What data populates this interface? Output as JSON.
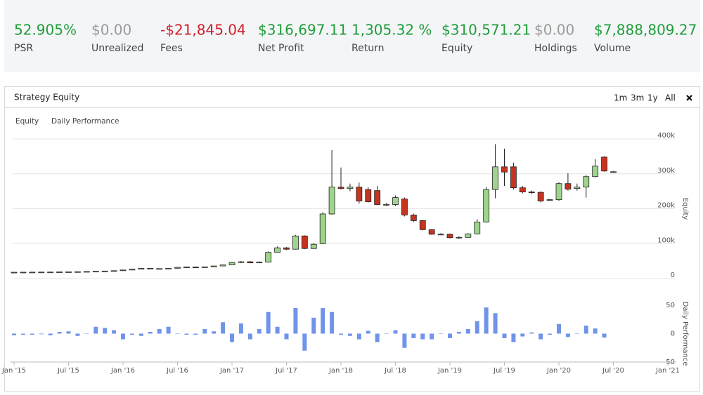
{
  "stats": [
    {
      "value": "52.905%",
      "label": "PSR",
      "color": "#1f9d3a"
    },
    {
      "value": "$0.00",
      "label": "Unrealized",
      "color": "#9a9a9a"
    },
    {
      "value": "-$21,845.04",
      "label": "Fees",
      "color": "#d0202a"
    },
    {
      "value": "$316,697.11",
      "label": "Net Profit",
      "color": "#1f9d3a"
    },
    {
      "value": "1,305.32 %",
      "label": "Return",
      "color": "#1f9d3a"
    },
    {
      "value": "$310,571.21",
      "label": "Equity",
      "color": "#1f9d3a"
    },
    {
      "value": "$0.00",
      "label": "Holdings",
      "color": "#9a9a9a"
    },
    {
      "value": "$7,888,809.27",
      "label": "Volume",
      "color": "#1f9d3a"
    }
  ],
  "panel": {
    "title": "Strategy Equity",
    "ranges": [
      "1m",
      "3m",
      "1y",
      "All"
    ],
    "tabs": [
      "Equity",
      "Daily Performance"
    ]
  },
  "chart_data": [
    {
      "type": "candlestick",
      "y_label": "Equity",
      "up_color": "#9fd48c",
      "down_color": "#c4341f",
      "x": [
        "2015-01",
        "2015-02",
        "2015-03",
        "2015-04",
        "2015-05",
        "2015-06",
        "2015-07",
        "2015-08",
        "2015-09",
        "2015-10",
        "2015-11",
        "2015-12",
        "2016-01",
        "2016-02",
        "2016-03",
        "2016-04",
        "2016-05",
        "2016-06",
        "2016-07",
        "2016-08",
        "2016-09",
        "2016-10",
        "2016-11",
        "2016-12",
        "2017-01",
        "2017-02",
        "2017-03",
        "2017-04",
        "2017-05",
        "2017-06",
        "2017-07",
        "2017-08",
        "2017-09",
        "2017-10",
        "2017-11",
        "2017-12",
        "2018-01",
        "2018-02",
        "2018-03",
        "2018-04",
        "2018-05",
        "2018-06",
        "2018-07",
        "2018-08",
        "2018-09",
        "2018-10",
        "2018-11",
        "2018-12",
        "2019-01",
        "2019-02",
        "2019-03",
        "2019-04",
        "2019-05",
        "2019-06",
        "2019-07",
        "2019-08",
        "2019-09",
        "2019-10",
        "2019-11",
        "2019-12",
        "2020-01",
        "2020-02",
        "2020-03",
        "2020-04",
        "2020-05",
        "2020-06",
        "2020-07"
      ],
      "open": [
        18000,
        18000,
        18200,
        18300,
        18500,
        18600,
        19000,
        19300,
        19600,
        20200,
        20800,
        21500,
        22500,
        24500,
        27000,
        29500,
        28000,
        28500,
        29500,
        32000,
        33000,
        32500,
        33500,
        36000,
        39000,
        46000,
        48000,
        45000,
        47000,
        75000,
        88000,
        84000,
        122000,
        86000,
        100000,
        185000,
        262000,
        258000,
        262000,
        255000,
        252000,
        212000,
        212000,
        228000,
        182000,
        166000,
        140000,
        127000,
        127000,
        117000,
        118000,
        128000,
        162000,
        255000,
        320000,
        320000,
        260000,
        248000,
        247000,
        224000,
        226000,
        272000,
        258000,
        262000,
        292000,
        348000,
        306000
      ],
      "high": [
        18500,
        18500,
        18600,
        18800,
        19000,
        19200,
        19500,
        19800,
        20500,
        21000,
        22000,
        23000,
        25000,
        28000,
        30000,
        30000,
        29000,
        30000,
        33000,
        34000,
        34000,
        34000,
        37000,
        40000,
        48000,
        50000,
        50000,
        49000,
        78000,
        92000,
        90000,
        125000,
        124000,
        102000,
        190000,
        368000,
        318000,
        272000,
        275000,
        262000,
        265000,
        216000,
        238000,
        232000,
        186000,
        168000,
        142000,
        130000,
        129000,
        122000,
        130000,
        170000,
        262000,
        385000,
        372000,
        332000,
        265000,
        252000,
        250000,
        228000,
        276000,
        302000,
        272000,
        296000,
        342000,
        350000,
        308000
      ],
      "low": [
        17800,
        17800,
        18000,
        18000,
        18200,
        18300,
        18800,
        19000,
        19300,
        20000,
        20500,
        21200,
        22000,
        24000,
        26000,
        27000,
        27000,
        28000,
        29000,
        31000,
        31500,
        32000,
        33000,
        35500,
        38000,
        44000,
        44000,
        44000,
        46000,
        74000,
        82000,
        83000,
        84000,
        84000,
        98000,
        183000,
        255000,
        250000,
        215000,
        218000,
        210000,
        208000,
        208000,
        178000,
        162000,
        138000,
        125000,
        124000,
        115000,
        114000,
        117000,
        126000,
        160000,
        230000,
        265000,
        255000,
        244000,
        242000,
        218000,
        222000,
        222000,
        252000,
        252000,
        232000,
        290000,
        306000,
        304000
      ],
      "close": [
        18000,
        18200,
        18300,
        18500,
        18600,
        19000,
        19300,
        19600,
        20200,
        20800,
        21500,
        22500,
        24500,
        27000,
        29500,
        28000,
        28500,
        29500,
        32000,
        33000,
        32500,
        33500,
        36000,
        39000,
        46000,
        48000,
        45000,
        47000,
        75000,
        88000,
        84000,
        122000,
        86000,
        98000,
        185000,
        262000,
        258000,
        262000,
        222000,
        220000,
        212000,
        212000,
        232000,
        182000,
        166000,
        140000,
        127000,
        127000,
        117000,
        118000,
        128000,
        162000,
        255000,
        320000,
        305000,
        260000,
        248000,
        247000,
        222000,
        226000,
        272000,
        256000,
        262000,
        292000,
        322000,
        308000,
        306000
      ],
      "ylim": [
        0,
        400000
      ],
      "yticks": [
        0,
        {
          "value": 100000,
          "label": "100k"
        },
        {
          "value": 200000,
          "label": "200k"
        },
        {
          "value": 300000,
          "label": "300k"
        },
        {
          "value": 400000,
          "label": "400k"
        }
      ],
      "grid": true,
      "xlim": [
        "2015-01",
        "2021-01"
      ]
    },
    {
      "type": "bar",
      "y_label": "Daily Performance",
      "color": "#7094ea",
      "x": [
        "2015-01",
        "2015-02",
        "2015-03",
        "2015-04",
        "2015-05",
        "2015-06",
        "2015-07",
        "2015-08",
        "2015-09",
        "2015-10",
        "2015-11",
        "2015-12",
        "2016-01",
        "2016-02",
        "2016-03",
        "2016-04",
        "2016-05",
        "2016-06",
        "2016-07",
        "2016-08",
        "2016-09",
        "2016-10",
        "2016-11",
        "2016-12",
        "2017-01",
        "2017-02",
        "2017-03",
        "2017-04",
        "2017-05",
        "2017-06",
        "2017-07",
        "2017-08",
        "2017-09",
        "2017-10",
        "2017-11",
        "2017-12",
        "2018-01",
        "2018-02",
        "2018-03",
        "2018-04",
        "2018-05",
        "2018-06",
        "2018-07",
        "2018-08",
        "2018-09",
        "2018-10",
        "2018-11",
        "2018-12",
        "2019-01",
        "2019-02",
        "2019-03",
        "2019-04",
        "2019-05",
        "2019-06",
        "2019-07",
        "2019-08",
        "2019-09",
        "2019-10",
        "2019-11",
        "2019-12",
        "2020-01",
        "2020-02",
        "2020-03",
        "2020-04",
        "2020-05",
        "2020-06",
        "2020-07"
      ],
      "values": [
        -3,
        -2,
        -2,
        -1,
        -3,
        3,
        4,
        -4,
        0,
        12,
        10,
        6,
        -10,
        -2,
        -4,
        3,
        8,
        12,
        0,
        -2,
        -2,
        8,
        4,
        20,
        -15,
        18,
        -10,
        8,
        38,
        12,
        -10,
        45,
        -30,
        28,
        45,
        38,
        -2,
        -4,
        -10,
        5,
        -15,
        0,
        6,
        -25,
        -8,
        -10,
        -10,
        0,
        -8,
        3,
        8,
        22,
        46,
        36,
        -8,
        -15,
        -5,
        2,
        -10,
        -2,
        17,
        -6,
        0,
        14,
        9,
        -7,
        null
      ],
      "ylim": [
        -50,
        50
      ],
      "yticks": [
        -50,
        0,
        50
      ],
      "xlim": [
        "2015-01",
        "2021-01"
      ],
      "xticks": [
        {
          "value": "2015-01",
          "label": "Jan '15"
        },
        {
          "value": "2015-07",
          "label": "Jul '15"
        },
        {
          "value": "2016-01",
          "label": "Jan '16"
        },
        {
          "value": "2016-07",
          "label": "Jul '16"
        },
        {
          "value": "2017-01",
          "label": "Jan '17"
        },
        {
          "value": "2017-07",
          "label": "Jul '17"
        },
        {
          "value": "2018-01",
          "label": "Jan '18"
        },
        {
          "value": "2018-07",
          "label": "Jul '18"
        },
        {
          "value": "2019-01",
          "label": "Jan '19"
        },
        {
          "value": "2019-07",
          "label": "Jul '19"
        },
        {
          "value": "2020-01",
          "label": "Jan '20"
        },
        {
          "value": "2020-07",
          "label": "Jul '20"
        },
        {
          "value": "2021-01",
          "label": "Jan '21"
        }
      ]
    }
  ]
}
